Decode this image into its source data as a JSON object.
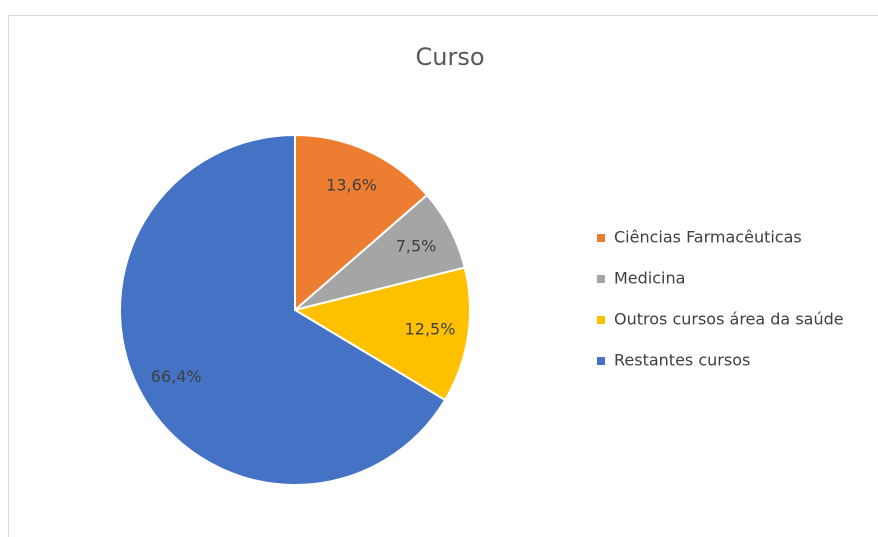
{
  "chart_data": {
    "type": "pie",
    "title": "Curso",
    "categories": [
      "Ciências Farmacêuticas",
      "Medicina",
      "Outros cursos área da saúde",
      "Restantes cursos"
    ],
    "values": [
      13.6,
      7.5,
      12.5,
      66.4
    ],
    "value_labels": [
      "13,6%",
      "7,5%",
      "12,5%",
      "66,4%"
    ],
    "colors": [
      "#ed7d31",
      "#a5a5a5",
      "#ffc000",
      "#4472c4"
    ],
    "legend": "right"
  }
}
